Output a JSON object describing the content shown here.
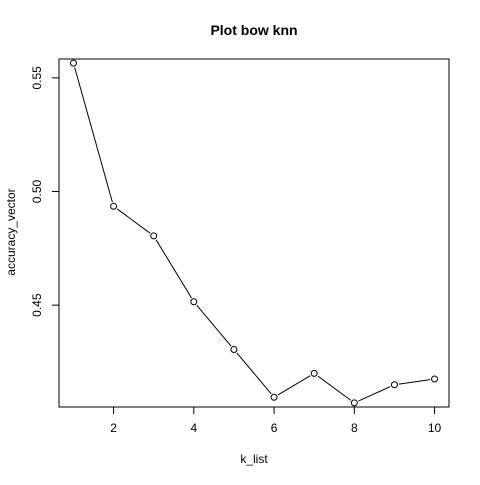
{
  "chart_data": {
    "type": "line",
    "title": "Plot bow knn",
    "xlabel": "k_list",
    "ylabel": "accuracy_vector",
    "x": [
      1,
      2,
      3,
      4,
      5,
      6,
      7,
      8,
      9,
      10
    ],
    "values": [
      0.5565,
      0.4935,
      0.4805,
      0.4515,
      0.4305,
      0.4095,
      0.42,
      0.407,
      0.415,
      0.4175
    ],
    "xlim": [
      0.64,
      10.36
    ],
    "ylim": [
      0.4052,
      0.5583
    ],
    "xticks": [
      2,
      4,
      6,
      8,
      10
    ],
    "xtick_labels": [
      "2",
      "4",
      "6",
      "8",
      "10"
    ],
    "yticks": [
      0.45,
      0.5,
      0.55
    ],
    "ytick_labels": [
      "0.45",
      "0.50",
      "0.55"
    ],
    "markers": "open-circle",
    "grid": false,
    "line_color": "#000000"
  }
}
